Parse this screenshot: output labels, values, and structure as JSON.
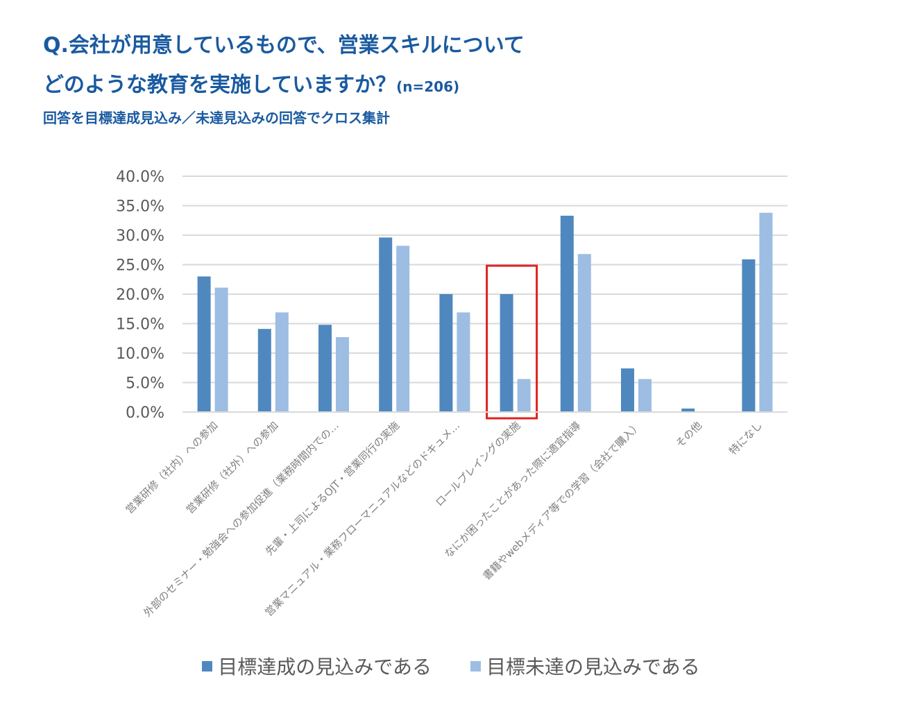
{
  "title_line1": "Q.会社が用意しているもので、営業スキルについて",
  "title_line2": "どのような教育を実施していますか？",
  "title_n": "(n=206)",
  "subtitle": "回答を目標達成見込み／未達見込みの回答でクロス集計",
  "colors": {
    "series1": "#4f88bf",
    "series2": "#9dbde3",
    "highlight": "#e02020",
    "grid": "#d9d9d9",
    "axis_text": "#595959",
    "title": "#1a5aa0"
  },
  "chart_data": {
    "type": "bar",
    "categories": [
      "営業研修（社内）への参加",
      "営業研修（社外）への参加",
      "外部のセミナー・勉強会への参加促進（業務時間内での…",
      "先輩・上司によるOJT・営業同行の実施",
      "営業マニュアル・業務フローマニュアルなどのドキュメ…",
      "ロールプレイングの実施",
      "なにか困ったことがあった際に適宜指導",
      "書籍やwebメディア等での学習（会社で購入）",
      "その他",
      "特になし"
    ],
    "series": [
      {
        "name": "目標達成の見込みである",
        "values": [
          23.0,
          14.1,
          14.8,
          29.6,
          20.0,
          20.0,
          33.3,
          7.4,
          0.6,
          25.9
        ]
      },
      {
        "name": "目標未達の見込みである",
        "values": [
          21.1,
          16.9,
          12.7,
          28.2,
          16.9,
          5.6,
          26.8,
          5.6,
          0.0,
          33.8
        ]
      }
    ],
    "ylim": [
      0,
      40
    ],
    "yticks": [
      "0.0%",
      "5.0%",
      "10.0%",
      "15.0%",
      "20.0%",
      "25.0%",
      "30.0%",
      "35.0%",
      "40.0%"
    ],
    "highlighted_category": "ロールプレイングの実施",
    "grid": true,
    "legend_position": "bottom"
  }
}
